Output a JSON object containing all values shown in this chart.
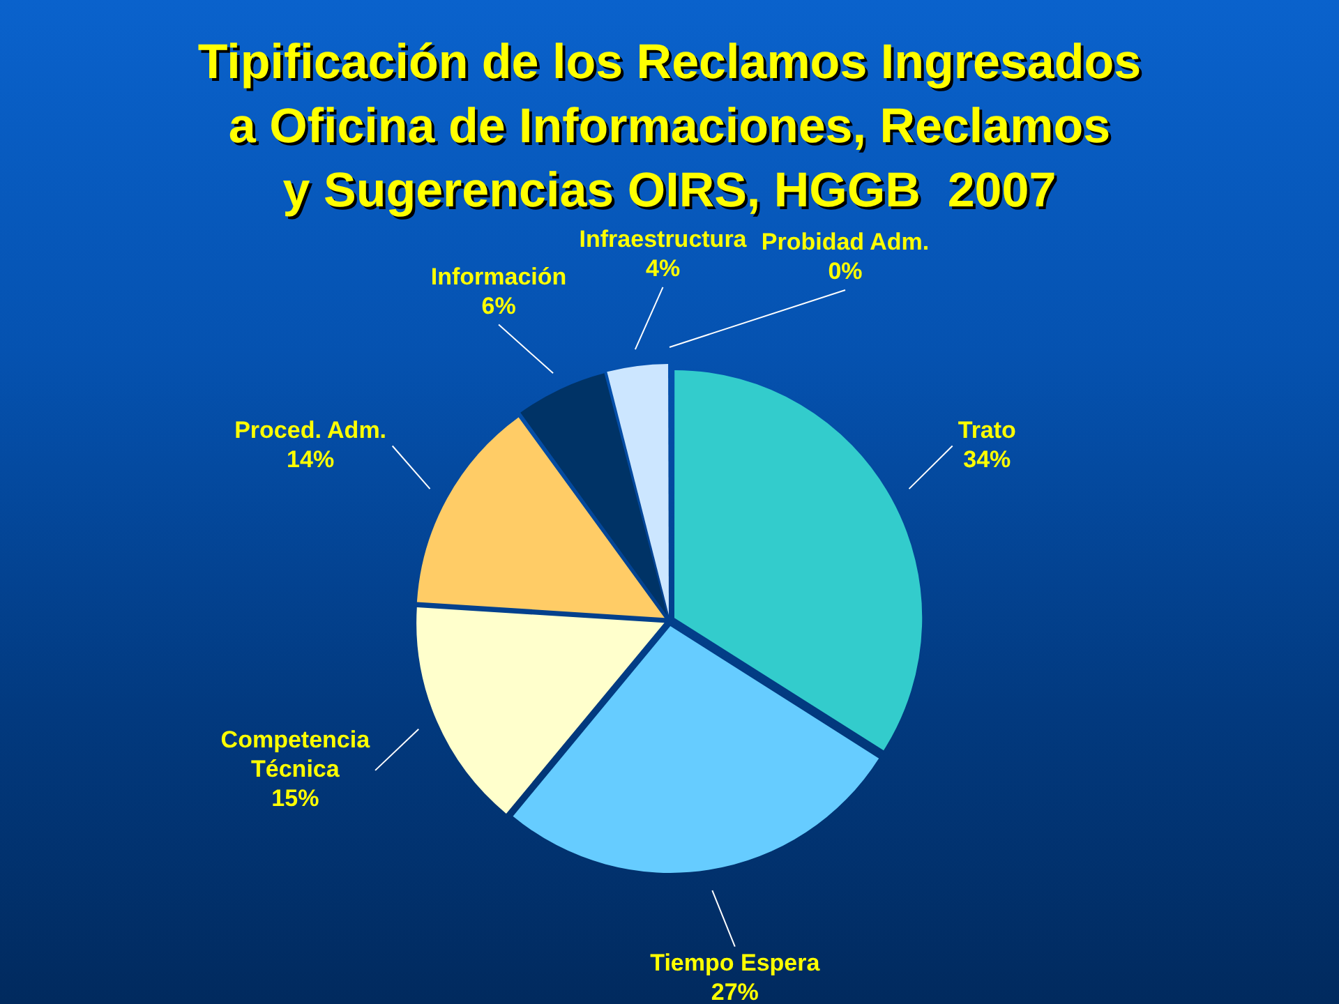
{
  "chart_data": {
    "type": "pie",
    "title": "Tipificación de los Reclamos Ingresados\na Oficina de Informaciones, Reclamos\ny Sugerencias OIRS, HGGB  2007",
    "categories": [
      "Trato",
      "Tiempo Espera",
      "Competencia Técnica",
      "Proced. Adm.",
      "Información",
      "Infraestructura",
      "Probidad Adm."
    ],
    "values": [
      34,
      27,
      15,
      14,
      6,
      4,
      0
    ],
    "value_labels": [
      "34%",
      "27%",
      "15%",
      "14%",
      "6%",
      "4%",
      "0%"
    ],
    "colors": [
      "#33cccc",
      "#66ccff",
      "#ffffcc",
      "#ffcc66",
      "#003366",
      "#cce6ff",
      "#0066cc"
    ]
  }
}
